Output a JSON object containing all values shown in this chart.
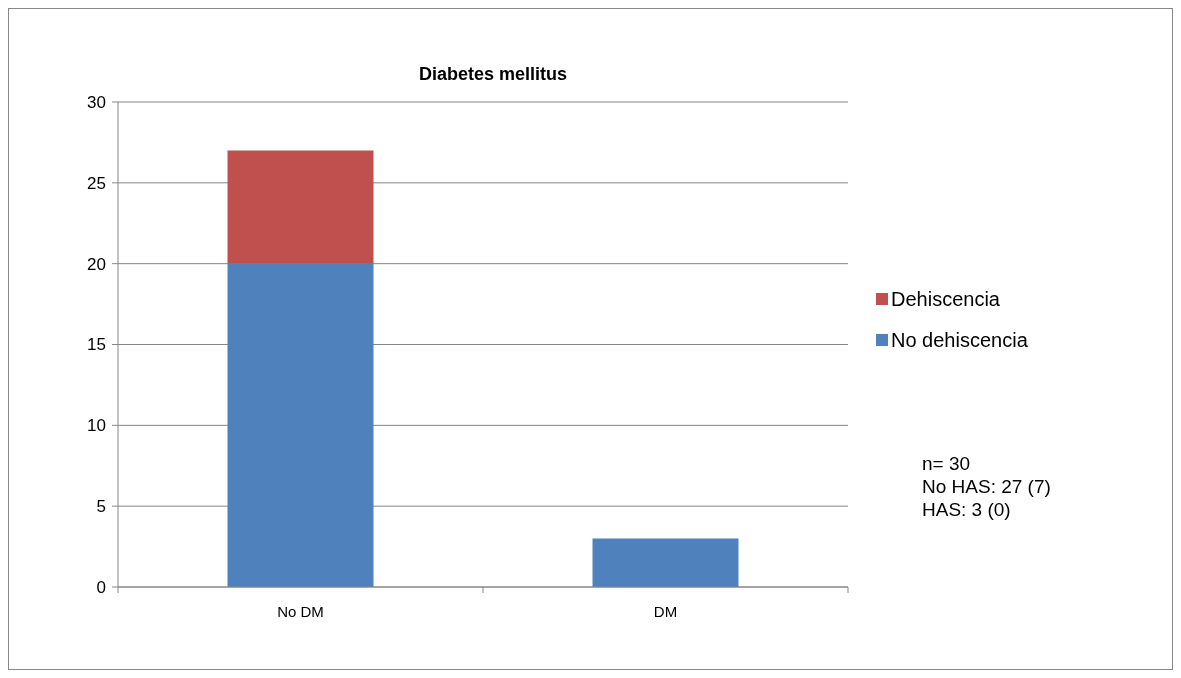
{
  "chart_data": {
    "type": "bar",
    "title": "Diabetes mellitus",
    "categories": [
      "No DM",
      "DM"
    ],
    "stacked": true,
    "series": [
      {
        "name": "No dehiscencia",
        "color": "#4f81bd",
        "values": [
          20,
          3
        ]
      },
      {
        "name": "Dehiscencia",
        "color": "#c0504d",
        "values": [
          7,
          0
        ]
      }
    ],
    "ylim": [
      0,
      30
    ],
    "yticks": [
      0,
      5,
      10,
      15,
      20,
      25,
      30
    ],
    "grid": "y",
    "legend": "right",
    "annotations": [
      "n= 30",
      "No HAS: 27 (7)",
      "HAS: 3 (0)"
    ]
  }
}
